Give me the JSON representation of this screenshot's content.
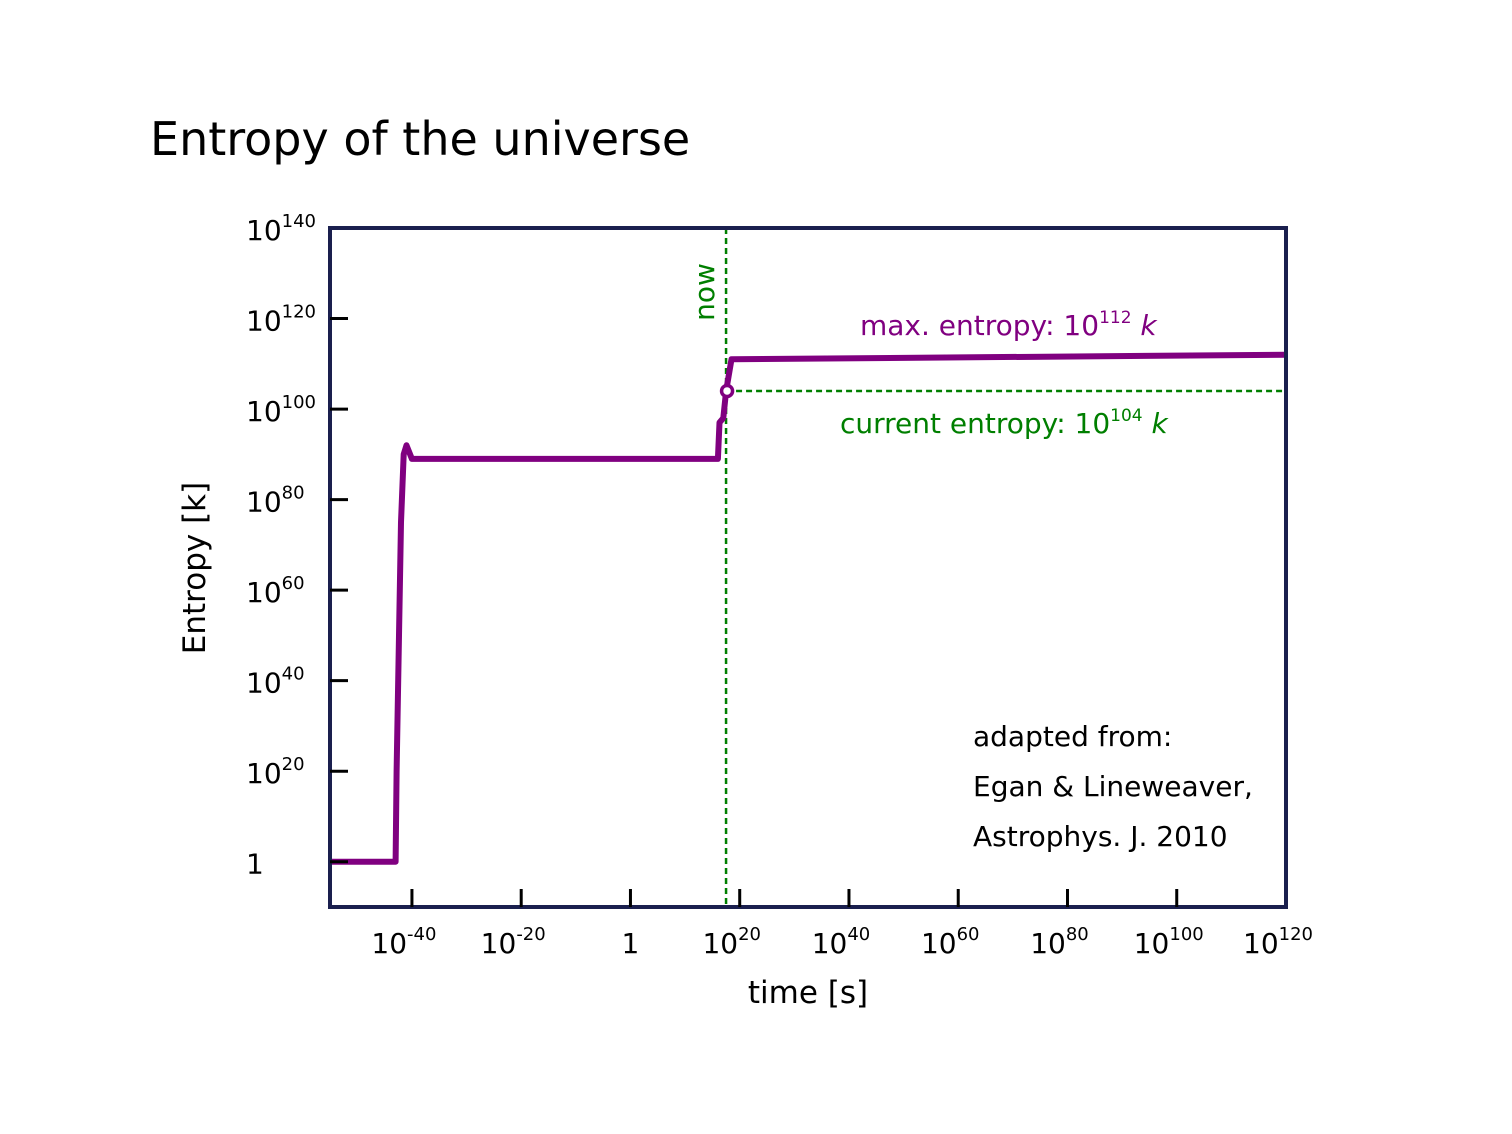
{
  "title": "Entropy of the universe",
  "colors": {
    "frame": "#1a1f4e",
    "series": "#800080",
    "now": "#007f00",
    "text": "#000000"
  },
  "chart_data": {
    "type": "line",
    "title": "Entropy of the universe",
    "xlabel": "time [s]",
    "ylabel": "Entropy [k]",
    "x_scale": "log10",
    "y_scale": "log10",
    "xlim_exponent": [
      -55,
      120
    ],
    "ylim_exponent": [
      -10,
      140
    ],
    "x_ticks": [
      {
        "base": "10",
        "exp": "-40",
        "value": -40
      },
      {
        "base": "10",
        "exp": "-20",
        "value": -20
      },
      {
        "base": "1",
        "exp": "",
        "value": 0
      },
      {
        "base": "10",
        "exp": "20",
        "value": 20
      },
      {
        "base": "10",
        "exp": "40",
        "value": 40
      },
      {
        "base": "10",
        "exp": "60",
        "value": 60
      },
      {
        "base": "10",
        "exp": "80",
        "value": 80
      },
      {
        "base": "10",
        "exp": "100",
        "value": 100
      },
      {
        "base": "10",
        "exp": "120",
        "value": 120
      }
    ],
    "y_ticks": [
      {
        "base": "1",
        "exp": "",
        "value": 0
      },
      {
        "base": "10",
        "exp": "20",
        "value": 20
      },
      {
        "base": "10",
        "exp": "40",
        "value": 40
      },
      {
        "base": "10",
        "exp": "60",
        "value": 60
      },
      {
        "base": "10",
        "exp": "80",
        "value": 80
      },
      {
        "base": "10",
        "exp": "100",
        "value": 100
      },
      {
        "base": "10",
        "exp": "120",
        "value": 120
      },
      {
        "base": "10",
        "exp": "140",
        "value": 140
      }
    ],
    "series": [
      {
        "x_exponent": [
          -55,
          -43,
          -42.8,
          -42,
          -41.5,
          -41,
          -40,
          16,
          16.3,
          17,
          17.5,
          18.5,
          120
        ],
        "y_exponent": [
          0,
          0,
          20,
          75,
          90,
          92,
          89,
          89,
          97,
          98,
          104,
          111,
          112
        ]
      }
    ],
    "now": {
      "x_exponent": 17.5,
      "label": "now"
    },
    "current_entropy": {
      "y_exponent": 104,
      "label_text": "current entropy: 10",
      "label_exp": "104",
      "label_unit": "k"
    },
    "max_entropy": {
      "y_exponent": 112,
      "label_text": "max. entropy: 10",
      "label_exp": "112",
      "label_unit": "k"
    },
    "annotation": [
      "adapted from:",
      "Egan & Lineweaver,",
      "Astrophys. J. 2010"
    ]
  }
}
